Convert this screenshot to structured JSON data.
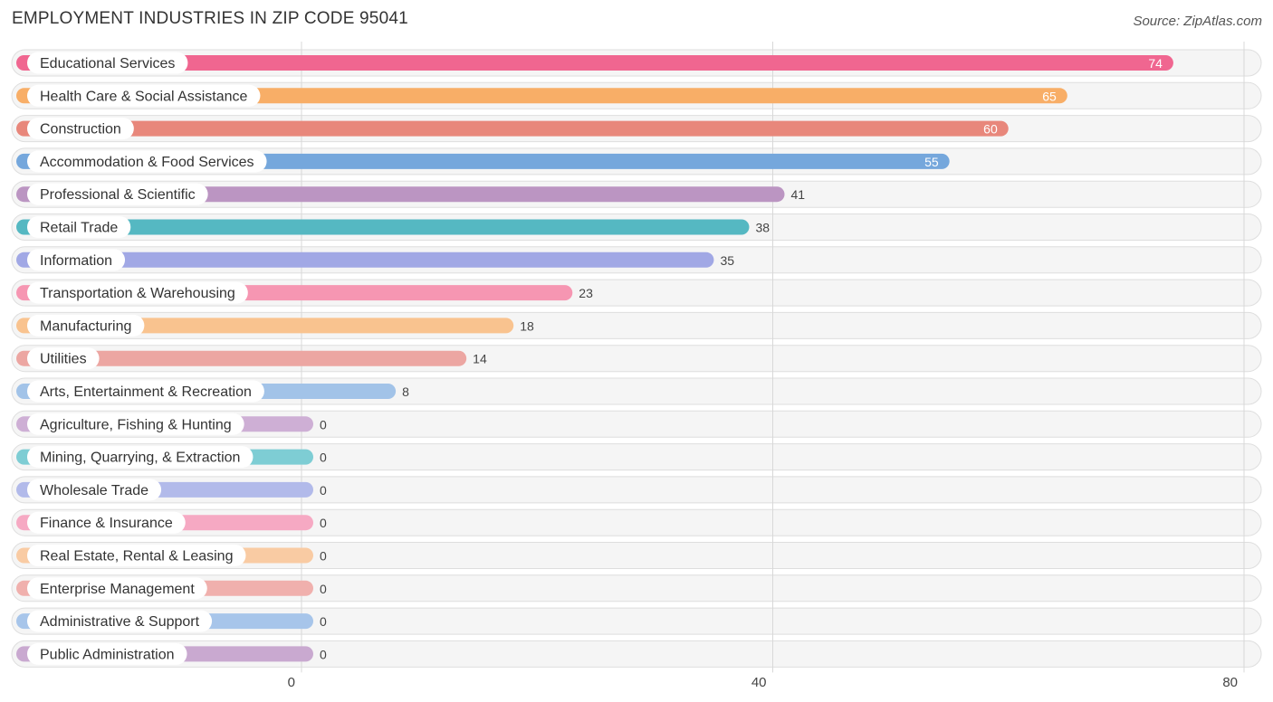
{
  "header": {
    "title": "EMPLOYMENT INDUSTRIES IN ZIP CODE 95041",
    "source": "Source: ZipAtlas.com"
  },
  "chart_data": {
    "type": "bar",
    "orientation": "horizontal",
    "title": "EMPLOYMENT INDUSTRIES IN ZIP CODE 95041",
    "xlabel": "",
    "ylabel": "",
    "xlim": [
      0,
      80
    ],
    "x_ticks": [
      0,
      40,
      80
    ],
    "grid": true,
    "categories": [
      "Educational Services",
      "Health Care & Social Assistance",
      "Construction",
      "Accommodation & Food Services",
      "Professional & Scientific",
      "Retail Trade",
      "Information",
      "Transportation & Warehousing",
      "Manufacturing",
      "Utilities",
      "Arts, Entertainment & Recreation",
      "Agriculture, Fishing & Hunting",
      "Mining, Quarrying, & Extraction",
      "Wholesale Trade",
      "Finance & Insurance",
      "Real Estate, Rental & Leasing",
      "Enterprise Management",
      "Administrative & Support",
      "Public Administration"
    ],
    "values": [
      74,
      65,
      60,
      55,
      41,
      38,
      35,
      23,
      18,
      14,
      8,
      0,
      0,
      0,
      0,
      0,
      0,
      0,
      0
    ],
    "colors": [
      "#f06690",
      "#f8ae67",
      "#e8877b",
      "#75a7dc",
      "#bb95c2",
      "#55b8c2",
      "#a1a8e5",
      "#f696b2",
      "#f9c38f",
      "#eca6a2",
      "#a2c3e8",
      "#ceafd5",
      "#7ecdd4",
      "#b2baea",
      "#f6a9c3",
      "#f9cba3",
      "#f0b0ad",
      "#a7c5ea",
      "#c9a9d0"
    ]
  }
}
